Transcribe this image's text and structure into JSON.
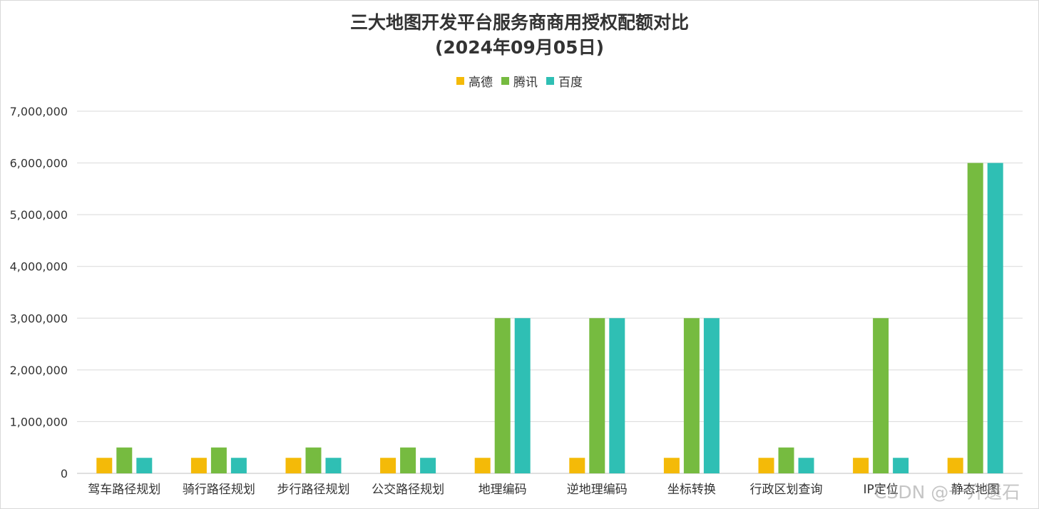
{
  "chart_data": {
    "type": "bar",
    "title": "三大地图开发平台服务商商用授权配额对比",
    "subtitle": "(2024年09月05日)",
    "categories": [
      "驾车路径规划",
      "骑行路径规划",
      "步行路径规划",
      "公交路径规划",
      "地理编码",
      "逆地理编码",
      "坐标转换",
      "行政区划查询",
      "IP定位",
      "静态地图"
    ],
    "series": [
      {
        "name": "高德",
        "color": "#F4BA08",
        "values": [
          300000,
          300000,
          300000,
          300000,
          300000,
          300000,
          300000,
          300000,
          300000,
          300000
        ]
      },
      {
        "name": "腾讯",
        "color": "#76BB40",
        "values": [
          500000,
          500000,
          500000,
          500000,
          3000000,
          3000000,
          3000000,
          500000,
          3000000,
          6000000
        ]
      },
      {
        "name": "百度",
        "color": "#2FBFB4",
        "values": [
          300000,
          300000,
          300000,
          300000,
          3000000,
          3000000,
          3000000,
          300000,
          300000,
          6000000
        ]
      }
    ],
    "y_ticks": [
      "0",
      "1,000,000",
      "2,000,000",
      "3,000,000",
      "4,000,000",
      "5,000,000",
      "6,000,000",
      "7,000,000"
    ],
    "ylim": [
      0,
      7000000
    ],
    "xlabel": "",
    "ylabel": "",
    "grid": true,
    "legend_position": "top-center"
  },
  "watermark": "CSDN @一介遗石"
}
